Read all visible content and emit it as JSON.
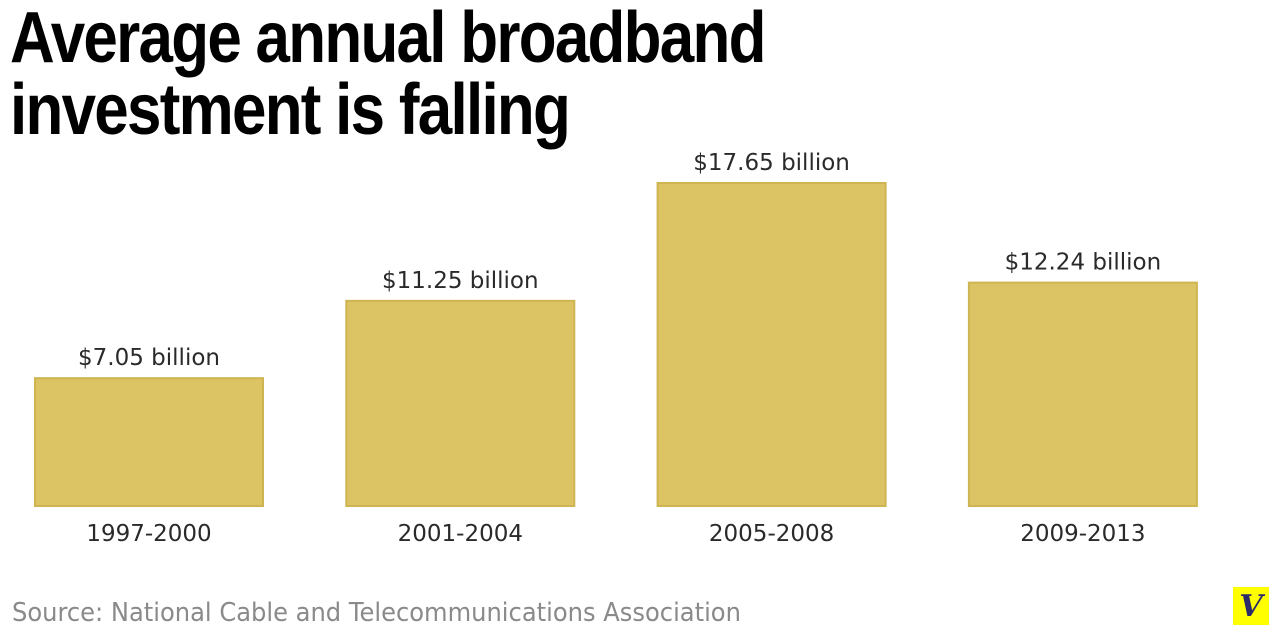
{
  "chart_data": {
    "type": "bar",
    "title": "Average annual broadband investment is falling",
    "categories": [
      "1997-2000",
      "2001-2004",
      "2005-2008",
      "2009-2013"
    ],
    "values": [
      7.05,
      11.25,
      17.65,
      12.24
    ],
    "data_labels": [
      "$7.05 billion",
      "$11.25 billion",
      "$17.65 billion",
      "$12.24 billion"
    ],
    "xlabel": "",
    "ylabel": "",
    "ylim": [
      0,
      17.65
    ],
    "grid": false,
    "bar_color": "#dcc464",
    "bar_border_color": "#cfb452"
  },
  "source": "Source: National Cable and Telecommunications Association",
  "logo": {
    "text": "V",
    "background": "#ffff00"
  }
}
